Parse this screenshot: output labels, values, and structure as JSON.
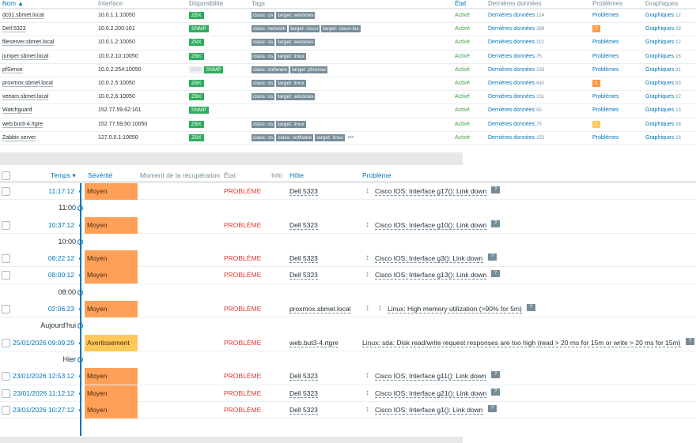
{
  "hosts": {
    "headers": {
      "name": "Nom ▲",
      "interface": "Interface",
      "availability": "Disponibilité",
      "tags": "Tags",
      "status": "État",
      "latest": "Dernières données",
      "problems": "Problèmes",
      "graphs": "Graphiques"
    },
    "rows": [
      {
        "name": "dc01.sbmet.local",
        "interface": "10.0.1.1:10050",
        "avail": [
          {
            "t": "ZBX",
            "on": true
          }
        ],
        "tags": [
          "class: os",
          "target: windows"
        ],
        "status": "Activé",
        "latest": "Dernières données",
        "latest_n": "124",
        "problems": "Problèmes",
        "graphs": "Graphiques",
        "graphs_n": "12"
      },
      {
        "name": "Dell 5323",
        "interface": "10.0.2.200:161",
        "avail": [
          {
            "t": "SNMP",
            "on": true
          }
        ],
        "tags": [
          "class: network",
          "target: cisco",
          "target: cisco-ios"
        ],
        "status": "Activé",
        "latest": "Dernières données",
        "latest_n": "288",
        "problems_badge": "7",
        "badge_color": "#ff9a45",
        "graphs": "Graphiques",
        "graphs_n": "28"
      },
      {
        "name": "fileserver.sbmet.local",
        "interface": "10.0.1.2:10050",
        "avail": [
          {
            "t": "ZBX",
            "on": true
          }
        ],
        "tags": [
          "class: os",
          "target: windows"
        ],
        "status": "Activé",
        "latest": "Dernières données",
        "latest_n": "110",
        "problems": "Problèmes",
        "graphs": "Graphiques",
        "graphs_n": "12"
      },
      {
        "name": "jumper.sbmet.local",
        "interface": "10.0.2.10:10050",
        "avail": [
          {
            "t": "ZBX",
            "on": true
          }
        ],
        "tags": [
          "class: os",
          "target: linux"
        ],
        "status": "Activé",
        "latest": "Dernières données",
        "latest_n": "75",
        "problems": "Problèmes",
        "graphs": "Graphiques",
        "graphs_n": "16"
      },
      {
        "name": "pfSense",
        "interface": "10.0.2.254:10050",
        "avail": [
          {
            "t": "ZBX",
            "on": false
          },
          {
            "t": "SNMP",
            "on": true
          }
        ],
        "tags": [
          "class: software",
          "target: pfsense"
        ],
        "status": "Activé",
        "latest": "Dernières données",
        "latest_n": "233",
        "problems": "Problèmes",
        "graphs": "Graphiques",
        "graphs_n": "31"
      },
      {
        "name": "proxmox.sbmel.local",
        "interface": "10.0.2.5:10050",
        "avail": [
          {
            "t": "ZBX",
            "on": true
          }
        ],
        "tags": [
          "class: os",
          "target: linux"
        ],
        "status": "Activé",
        "latest": "Dernières données",
        "latest_n": "642",
        "problems_badge": "1",
        "badge_color": "#ff9a45",
        "graphs": "Graphiques",
        "graphs_n": "83"
      },
      {
        "name": "veeam.sbmet.local",
        "interface": "10.0.2.6:10050",
        "avail": [
          {
            "t": "ZBX",
            "on": true
          }
        ],
        "tags": [
          "class: os",
          "target: windows"
        ],
        "status": "Activé",
        "latest": "Dernières données",
        "latest_n": "131",
        "problems": "Problèmes",
        "graphs": "Graphiques",
        "graphs_n": "12"
      },
      {
        "name": "Watchguard",
        "interface": "152.77.59.62:161",
        "avail": [
          {
            "t": "SNMP",
            "on": true
          }
        ],
        "tags": [],
        "status": "Activé",
        "latest": "Dernières données",
        "latest_n": "50",
        "problems": "Problèmes",
        "graphs": "Graphiques",
        "graphs_n": "13"
      },
      {
        "name": "web.but3-4.rtgre",
        "interface": "152.77.59.50:10050",
        "avail": [
          {
            "t": "ZBX",
            "on": true
          }
        ],
        "tags": [
          "class: os",
          "target: linux"
        ],
        "status": "Activé",
        "latest": "Dernières données",
        "latest_n": "75",
        "problems_badge": "1",
        "badge_color": "#ffc859",
        "graphs": "Graphiques",
        "graphs_n": "16"
      },
      {
        "name": "Zabbix server",
        "interface": "127.0.0.1:10050",
        "avail": [
          {
            "t": "ZBX",
            "on": true
          }
        ],
        "tags": [
          "class: os",
          "class: software",
          "target: linux"
        ],
        "more": "•••",
        "status": "Activé",
        "latest": "Dernières données",
        "latest_n": "153",
        "problems": "Problèmes",
        "graphs": "Graphiques",
        "graphs_n": "16"
      }
    ]
  },
  "events": {
    "headers": {
      "time": "Temps ▾",
      "severity": "Sévérité",
      "recovery": "Moment de la récupération",
      "status": "État",
      "info": "Info",
      "host": "Hôte",
      "problem": "Problème"
    },
    "colors": {
      "Moyen": "#ffa059",
      "Avertissement": "#ffc859"
    },
    "rows": [
      {
        "time": "11:17:12",
        "severity": "Moyen",
        "status": "PROBLÈME",
        "host": "Dell 5323",
        "arrows": 1,
        "problem": "Cisco IOS: Interface g17(): Link down"
      },
      {
        "label": "11:00"
      },
      {
        "time": "10:37:12",
        "severity": "Moyen",
        "status": "PROBLÈME",
        "host": "Dell 5323",
        "arrows": 1,
        "problem": "Cisco IOS: Interface g10(): Link down"
      },
      {
        "label": "10:00"
      },
      {
        "time": "08:22:12",
        "severity": "Moyen",
        "status": "PROBLÈME",
        "host": "Dell 5323",
        "arrows": 1,
        "problem": "Cisco IOS: Interface g3(): Link down"
      },
      {
        "time": "08:00:12",
        "severity": "Moyen",
        "status": "PROBLÈME",
        "host": "Dell 5323",
        "arrows": 1,
        "problem": "Cisco IOS: Interface g13(): Link down"
      },
      {
        "label": "08:00"
      },
      {
        "time": "02:06:23",
        "severity": "Moyen",
        "status": "PROBLÈME",
        "host": "proxmox.sbmel.local",
        "arrows": 2,
        "problem": "Linux: High memory utilization (>90% for 5m)"
      },
      {
        "label": "Aujourd'hui"
      },
      {
        "time": "25/01/2026 09:09:29",
        "severity": "Avertissement",
        "status": "PROBLÈME",
        "host": "web.but3-4.rtgre",
        "arrows": 0,
        "problem": "Linux: sda: Disk read/write request responses are too high (read > 20 ms for 15m or write > 20 ms for 15m)"
      },
      {
        "label": "Hier"
      },
      {
        "time": "23/01/2026 12:53:12",
        "severity": "Moyen",
        "status": "PROBLÈME",
        "host": "Dell 5323",
        "arrows": 1,
        "problem": "Cisco IOS: Interface g11(): Link down"
      },
      {
        "time": "23/01/2026 11:12:12",
        "severity": "Moyen",
        "status": "PROBLÈME",
        "host": "Dell 5323",
        "arrows": 1,
        "problem": "Cisco IOS: Interface g21(): Link down"
      },
      {
        "time": "23/01/2026 10:27:12",
        "severity": "Moyen",
        "status": "PROBLÈME",
        "host": "Dell 5323",
        "arrows": 1,
        "problem": "Cisco IOS: Interface g1(): Link down"
      }
    ]
  }
}
